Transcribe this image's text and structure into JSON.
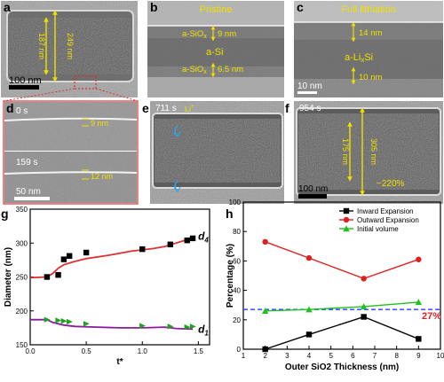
{
  "panels": {
    "a": {
      "letter": "a",
      "d_outer": "249 nm",
      "d_inner": "187 nm",
      "scale": "100 nm"
    },
    "b": {
      "letter": "b",
      "title": "Pristine",
      "outer_layer": "a-SiO",
      "outer_sub": "x",
      "outer_thk": "9 nm",
      "core": "a-Si",
      "inner_layer": "a-SiO",
      "inner_sub": "x",
      "inner_thk": "6.5 nm"
    },
    "c": {
      "letter": "c",
      "title": "Full lithiation",
      "outer_thk": "14 nm",
      "core": "a-Li",
      "core_sub": "x",
      "core_suffix": "Si",
      "inner_thk": "10 nm",
      "scale": "10 nm"
    },
    "d": {
      "letter": "d",
      "time_top": "0 s",
      "thk_top": "9 nm",
      "time_bot": "159 s",
      "thk_bot": "12 nm",
      "scale": "50 nm"
    },
    "e": {
      "letter": "e",
      "time": "711 s",
      "ion": "Li",
      "ion_sup": "+"
    },
    "f": {
      "letter": "f",
      "time": "954 s",
      "d_outer": "305 nm",
      "d_inner": "175 nm",
      "expansion": "~220%",
      "scale": "100 nm"
    }
  },
  "charts": {
    "g": {
      "letter": "g"
    },
    "h": {
      "letter": "h"
    }
  },
  "chart_data": [
    {
      "type": "scatter",
      "panel": "g",
      "xlabel": "t*",
      "ylabel": "Diameter (nm)",
      "xlim": [
        0,
        1.6
      ],
      "ylim": [
        150,
        350
      ],
      "xticks": [
        0.0,
        0.5,
        1.0,
        1.5
      ],
      "yticks": [
        150,
        200,
        250,
        300,
        350
      ],
      "series": [
        {
          "name": "d4",
          "label": "d",
          "sub": "4",
          "marker": "square",
          "color": "#000000",
          "points": [
            [
              0.15,
              250
            ],
            [
              0.25,
              253
            ],
            [
              0.3,
              276
            ],
            [
              0.35,
              281
            ],
            [
              0.5,
              286
            ],
            [
              1.0,
              291
            ],
            [
              1.25,
              298
            ],
            [
              1.4,
              304
            ],
            [
              1.45,
              307
            ]
          ],
          "fit": [
            [
              0,
              249
            ],
            [
              0.15,
              250
            ],
            [
              0.2,
              255
            ],
            [
              0.25,
              263
            ],
            [
              0.3,
              268
            ],
            [
              0.4,
              273
            ],
            [
              0.5,
              277
            ],
            [
              0.7,
              282
            ],
            [
              0.9,
              288
            ],
            [
              1.0,
              290
            ],
            [
              1.1,
              292
            ],
            [
              1.2,
              295
            ],
            [
              1.3,
              300
            ],
            [
              1.4,
              305
            ],
            [
              1.45,
              310
            ]
          ],
          "fit_color": "#e03030"
        },
        {
          "name": "d1",
          "label": "d",
          "sub": "1",
          "marker": "triangle-right",
          "color": "#20a020",
          "points": [
            [
              0.15,
              187
            ],
            [
              0.25,
              186
            ],
            [
              0.3,
              185
            ],
            [
              0.35,
              184
            ],
            [
              0.5,
              181
            ],
            [
              1.0,
              178
            ],
            [
              1.25,
              177
            ],
            [
              1.4,
              176
            ],
            [
              1.45,
              177
            ]
          ],
          "fit": [
            [
              0,
              187
            ],
            [
              0.15,
              187
            ],
            [
              0.2,
              183
            ],
            [
              0.3,
              179
            ],
            [
              0.4,
              177
            ],
            [
              0.6,
              176
            ],
            [
              0.8,
              175
            ],
            [
              1.0,
              175
            ],
            [
              1.2,
              176
            ],
            [
              1.3,
              174
            ],
            [
              1.45,
              173
            ]
          ],
          "fit_color": "#8b1a9e"
        }
      ]
    },
    {
      "type": "line",
      "panel": "h",
      "xlabel": "Outer SiO2 Thickness (nm)",
      "ylabel": "Percentage (%)",
      "xlim": [
        1,
        10
      ],
      "ylim": [
        0,
        100
      ],
      "xticks": [
        1,
        2,
        3,
        4,
        5,
        6,
        7,
        8,
        9,
        10
      ],
      "yticks": [
        0,
        20,
        40,
        60,
        80,
        100
      ],
      "legend": "top-right",
      "series": [
        {
          "name": "Inward Expansion",
          "color": "#000000",
          "marker": "square",
          "x": [
            2,
            4,
            6.5,
            9
          ],
          "y": [
            0,
            10,
            22,
            7
          ]
        },
        {
          "name": "Outward Expansion",
          "color": "#e02020",
          "marker": "circle",
          "x": [
            2,
            4,
            6.5,
            9
          ],
          "y": [
            73,
            62,
            48,
            61
          ]
        },
        {
          "name": "Initial volume",
          "color": "#20c020",
          "marker": "triangle",
          "x": [
            2,
            4,
            6.5,
            9
          ],
          "y": [
            26,
            27,
            29,
            32
          ]
        }
      ],
      "reference_line": {
        "y": 27,
        "label": "27%",
        "color": "#2040ff",
        "label_color": "#e02020"
      }
    }
  ]
}
